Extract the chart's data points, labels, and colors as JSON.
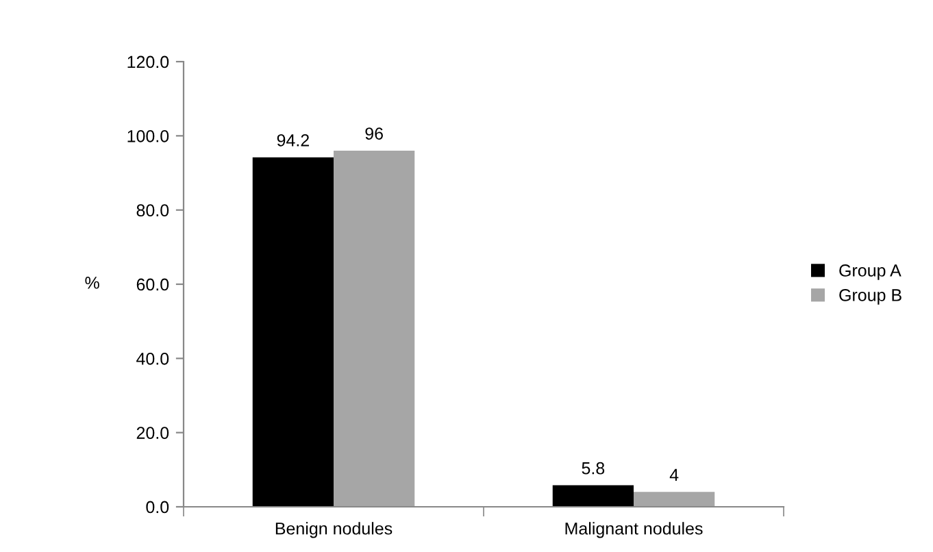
{
  "chart_data": {
    "type": "bar",
    "ylabel": "%",
    "categories": [
      "Benign nodules",
      "Malignant nodules"
    ],
    "series": [
      {
        "name": "Group A",
        "color": "#000000",
        "values": [
          94.2,
          5.8
        ]
      },
      {
        "name": "Group B",
        "color": "#a6a6a6",
        "values": [
          96,
          4
        ]
      }
    ],
    "ylim": [
      0,
      120
    ],
    "yticks": [
      {
        "value": 0,
        "label": "0.0"
      },
      {
        "value": 20,
        "label": "20.0"
      },
      {
        "value": 40,
        "label": "40.0"
      },
      {
        "value": 60,
        "label": "60.0"
      },
      {
        "value": 80,
        "label": "80.0"
      },
      {
        "value": 100,
        "label": "100.0"
      },
      {
        "value": 120,
        "label": "120.0"
      }
    ],
    "data_labels": true,
    "legend": "right",
    "grid": false
  }
}
